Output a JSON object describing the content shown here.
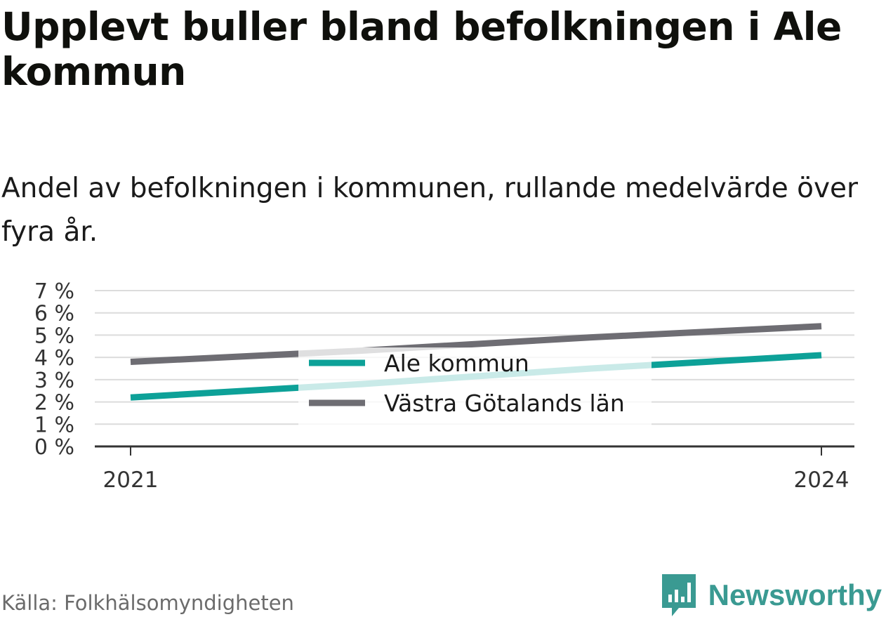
{
  "header": {
    "title": "Upplevt buller bland befolkningen i Ale kommun",
    "subtitle": "Andel av befolkningen i kommunen, rullande medelvärde över fyra år."
  },
  "footer": {
    "source": "Källa: Folkhälsomyndigheten",
    "brand": "Newsworthy"
  },
  "colors": {
    "ale": "#0da198",
    "vgl": "#6e6d73",
    "grid": "#dcdcdc",
    "axis": "#333333",
    "brand": "#3a9a92"
  },
  "icons": {
    "brand_logo": "bar-chart-speech-bubble-icon"
  },
  "chart_data": {
    "type": "line",
    "title": "Upplevt buller bland befolkningen i Ale kommun",
    "subtitle": "Andel av befolkningen i kommunen, rullande medelvärde över fyra år.",
    "x": [
      2021,
      2022,
      2023,
      2024
    ],
    "x_tick_labels": [
      "2021",
      "2024"
    ],
    "ylim": [
      0,
      7
    ],
    "y_ticks": [
      0,
      1,
      2,
      3,
      4,
      5,
      6,
      7
    ],
    "y_tick_labels": [
      "0 %",
      "1 %",
      "2 %",
      "3 %",
      "4 %",
      "5 %",
      "6 %",
      "7 %"
    ],
    "grid": true,
    "legend": "center",
    "series": [
      {
        "name": "Ale kommun",
        "color": "#0da198",
        "values": [
          2.2,
          2.8,
          3.5,
          4.1
        ]
      },
      {
        "name": "Västra Götalands län",
        "color": "#6e6d73",
        "values": [
          3.8,
          4.3,
          4.9,
          5.4
        ]
      }
    ]
  }
}
